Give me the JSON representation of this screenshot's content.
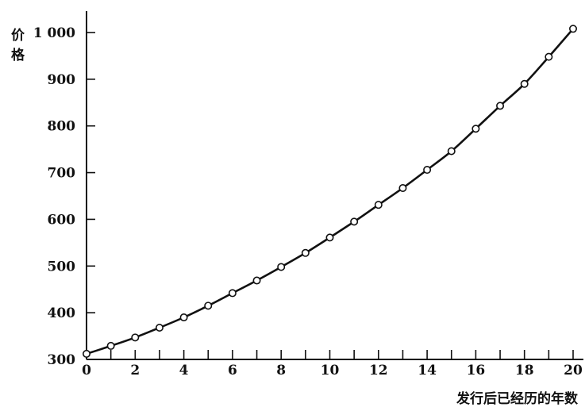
{
  "chart_data": {
    "type": "line",
    "title": "",
    "xlabel": "发行后已经历的年数",
    "ylabel": "价格",
    "xlim": [
      0,
      20
    ],
    "ylim": [
      300,
      1000
    ],
    "x_ticks": [
      0,
      2,
      4,
      6,
      8,
      10,
      12,
      14,
      16,
      18,
      20
    ],
    "x_tick_labels": [
      "0",
      "2",
      "4",
      "6",
      "8",
      "10",
      "12",
      "14",
      "16",
      "18",
      "20"
    ],
    "y_ticks": [
      300,
      400,
      500,
      600,
      700,
      800,
      900,
      1000
    ],
    "y_tick_labels": [
      "300",
      "400",
      "500",
      "600",
      "700",
      "800",
      "900",
      "1 000"
    ],
    "grid": false,
    "legend": "none",
    "series": [
      {
        "x": [
          0,
          1,
          2,
          3,
          4,
          5,
          6,
          7,
          8,
          9,
          10,
          11,
          12,
          13,
          14,
          15,
          16,
          17,
          18,
          19,
          20
        ],
        "y": [
          312,
          329,
          347,
          368,
          390,
          415,
          442,
          469,
          498,
          528,
          561,
          595,
          631,
          667,
          706,
          746,
          794,
          843,
          890,
          948,
          1008
        ],
        "marker": "circle"
      }
    ],
    "colors": {
      "line": "#111111",
      "axis": "#111111",
      "marker_fill": "#ffffff"
    }
  }
}
